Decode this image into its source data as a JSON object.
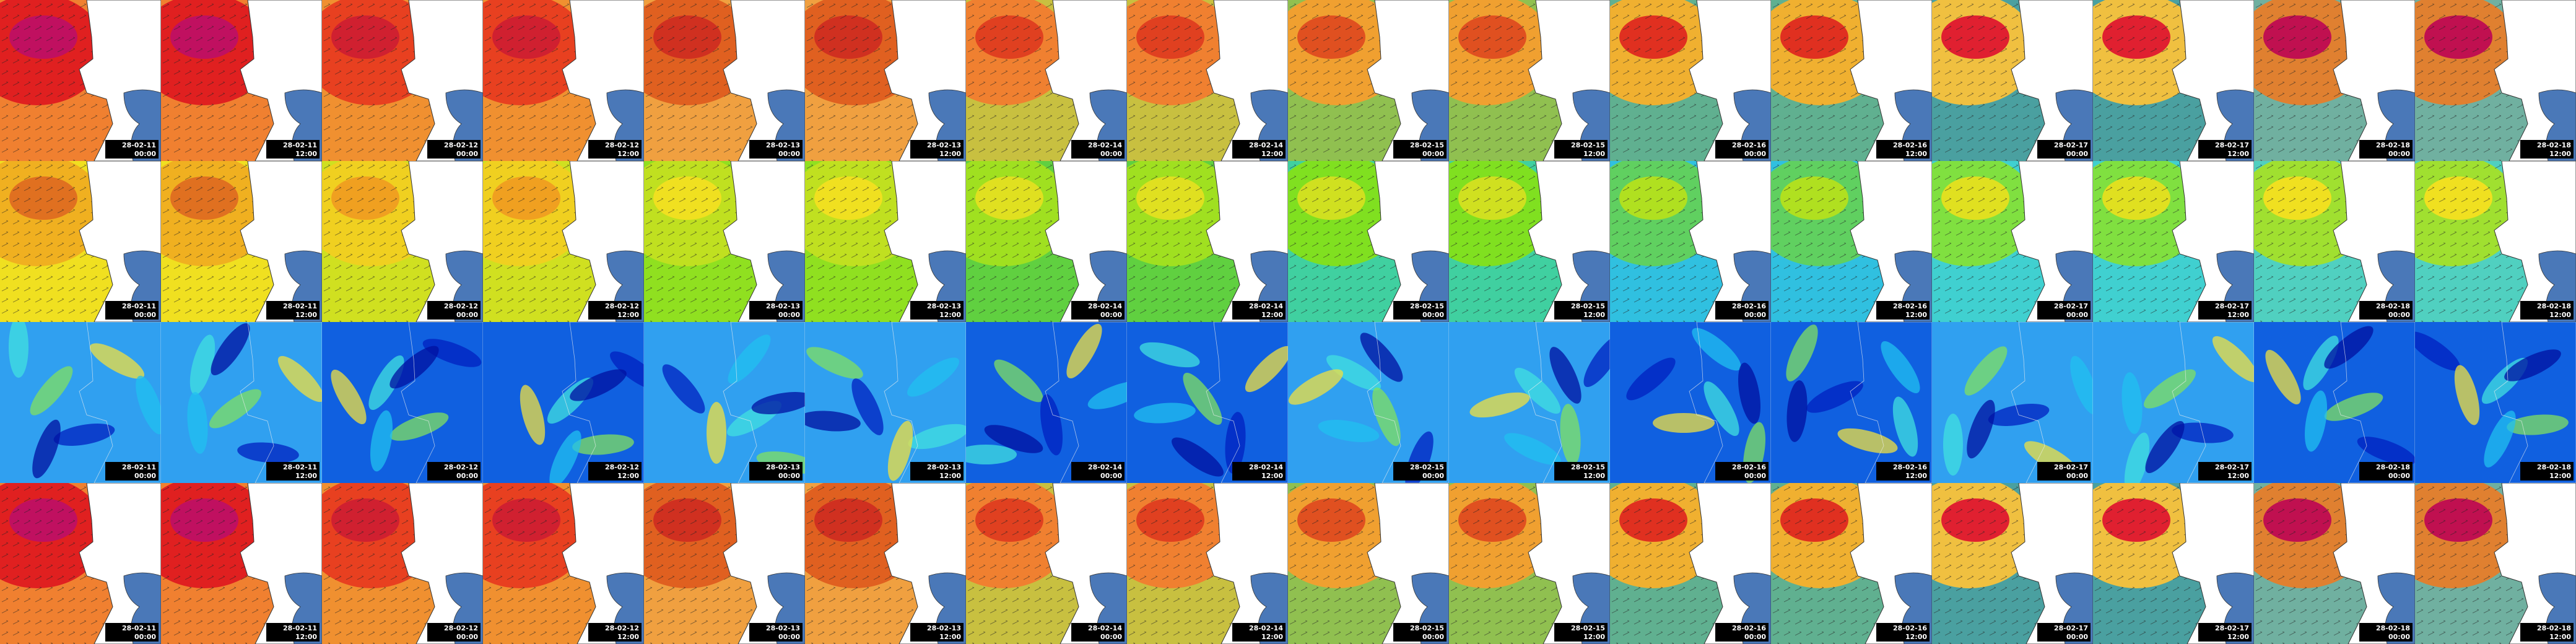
{
  "columns": [
    {
      "date": "28-02-11",
      "time": "00:00"
    },
    {
      "date": "28-02-11",
      "time": "12:00"
    },
    {
      "date": "28-02-12",
      "time": "00:00"
    },
    {
      "date": "28-02-12",
      "time": "12:00"
    },
    {
      "date": "28-02-13",
      "time": "00:00"
    },
    {
      "date": "28-02-13",
      "time": "12:00"
    },
    {
      "date": "28-02-14",
      "time": "00:00"
    },
    {
      "date": "28-02-14",
      "time": "12:00"
    },
    {
      "date": "28-02-15",
      "time": "00:00"
    },
    {
      "date": "28-02-15",
      "time": "12:00"
    },
    {
      "date": "28-02-16",
      "time": "00:00"
    },
    {
      "date": "28-02-16",
      "time": "12:00"
    },
    {
      "date": "28-02-17",
      "time": "00:00"
    },
    {
      "date": "28-02-17",
      "time": "12:00"
    },
    {
      "date": "28-02-18",
      "time": "00:00"
    },
    {
      "date": "28-02-18",
      "time": "12:00"
    }
  ]
}
